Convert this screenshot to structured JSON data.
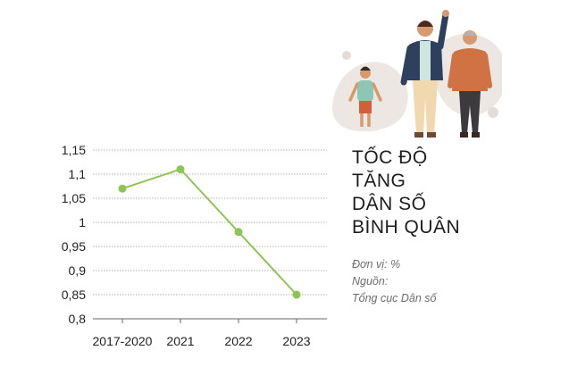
{
  "title_lines": [
    "TỐC ĐỘ",
    "TĂNG",
    "DÂN SỐ",
    "BÌNH QUÂN"
  ],
  "unit_text": "Đơn vị: %",
  "source_label": "Nguồn:",
  "source_name": "Tổng cục Dân số",
  "colors": {
    "line": "#8dc453",
    "grid": "#9a9a9a",
    "axis": "#666666",
    "blob": "#ede7e4"
  },
  "illustration": {
    "description_icons": [
      "child-figure-icon",
      "man-waving-figure-icon",
      "older-man-figure-icon"
    ]
  },
  "chart_data": {
    "type": "line",
    "categories": [
      "2017-2020",
      "2021",
      "2022",
      "2023"
    ],
    "values": [
      1.07,
      1.11,
      0.98,
      0.85
    ],
    "yticks": [
      "1,15",
      "1,1",
      "1,05",
      "1",
      "0,95",
      "0,9",
      "0,85",
      "0,8"
    ],
    "ylim": [
      0.8,
      1.15
    ],
    "grid": true,
    "grid_style": "dashed",
    "title": "",
    "xlabel": "",
    "ylabel": ""
  }
}
